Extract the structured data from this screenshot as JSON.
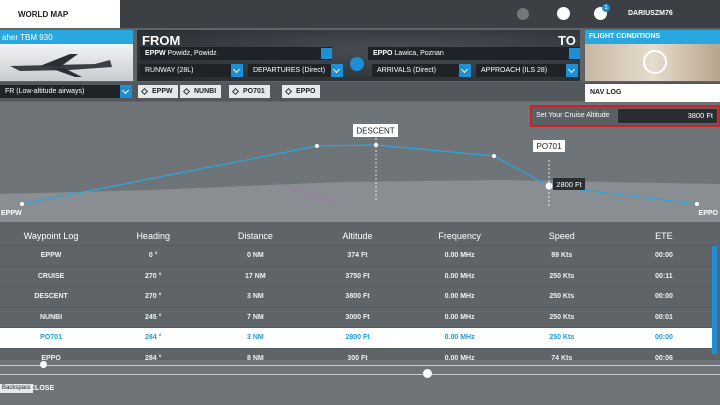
{
  "top_bar": {
    "tab": "WORLD MAP",
    "notifications": "1",
    "username": "DARIUSZM76"
  },
  "aircraft": {
    "name": "aher TBM 930"
  },
  "route": {
    "from_label": "FROM",
    "to_label": "TO",
    "departure": {
      "code": "EPPW",
      "name": "Powidz, Powidz"
    },
    "arrival": {
      "code": "EPPO",
      "name": "Lawica, Poznan"
    },
    "runway": "RUNWAY (28L)",
    "departures": "DEPARTURES (Direct)",
    "arrivals": "ARRIVALS (Direct)",
    "approach": "APPROACH (ILS 28)"
  },
  "flight_type": "FR (Low-altitude airways)",
  "waypoints": [
    "EPPW",
    "NUNBI",
    "PO701",
    "EPPO"
  ],
  "flight_conditions": {
    "title": "FLIGHT CONDITIONS"
  },
  "nav_log": {
    "tab": "NAV LOG",
    "cruise_label": "Set Your Cruise Altitude",
    "cruise_value": "3800 Ft"
  },
  "profile": {
    "start": "EPPW",
    "end": "EPPO",
    "descent": "DESCENT",
    "selected": "PO701",
    "selected_altitude": "2800 Ft"
  },
  "table": {
    "header": [
      "Waypoint Log",
      "Heading",
      "Distance",
      "Altitude",
      "Frequency",
      "Speed",
      "ETE"
    ],
    "rows": [
      [
        "EPPW",
        "0 °",
        "0 NM",
        "374 Ft",
        "0.00 MHz",
        "89 Kts",
        "00:00"
      ],
      [
        "CRUISE",
        "270 °",
        "17 NM",
        "3750 Ft",
        "0.00 MHz",
        "250 Kts",
        "00:11"
      ],
      [
        "DESCENT",
        "270 °",
        "3 NM",
        "3800 Ft",
        "0.00 MHz",
        "250 Kts",
        "00:00"
      ],
      [
        "NUNBI",
        "245 °",
        "7 NM",
        "3000 Ft",
        "0.00 MHz",
        "250 Kts",
        "00:01"
      ],
      [
        "PO701",
        "284 °",
        "3 NM",
        "2800 Ft",
        "0.00 MHz",
        "250 Kts",
        "00:00"
      ],
      [
        "EPPO",
        "284 °",
        "8 NM",
        "300 Ft",
        "0.00 MHz",
        "74 Kts",
        "00:06"
      ]
    ]
  },
  "footer": {
    "key": "Backspace",
    "action": "CLOSE"
  }
}
